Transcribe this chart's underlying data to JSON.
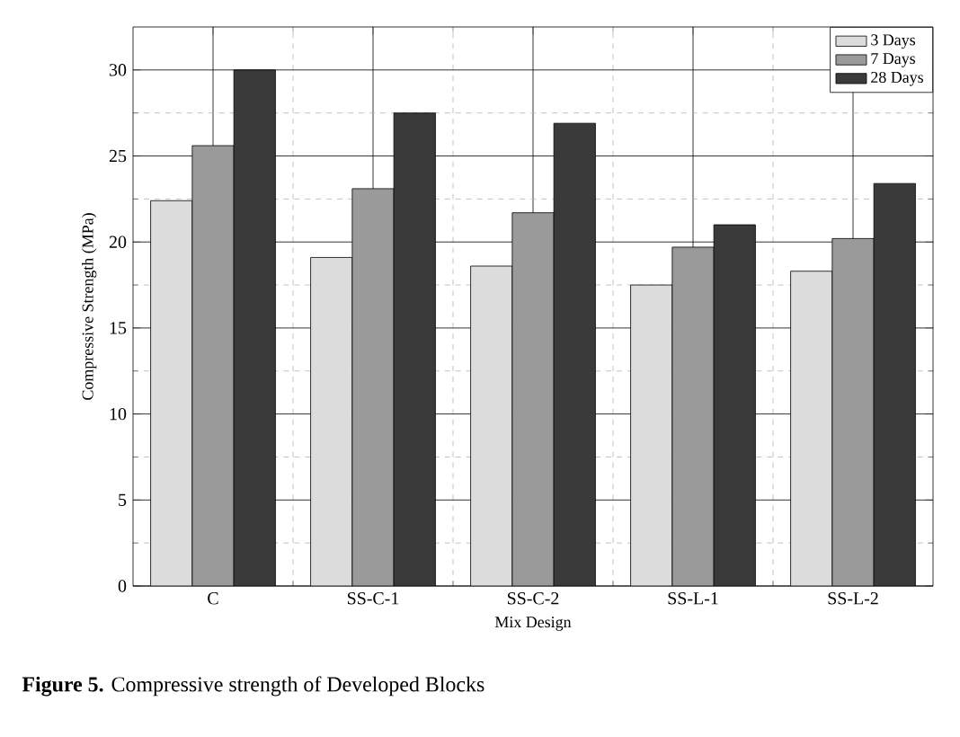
{
  "chart_data": {
    "type": "bar",
    "xlabel": "Mix Design",
    "ylabel": "Compressive Strength (MPa)",
    "categories": [
      "C",
      "SS-C-1",
      "SS-C-2",
      "SS-L-1",
      "SS-L-2"
    ],
    "series": [
      {
        "name": "3 Days",
        "color": "#dcdcdc",
        "values": [
          22.4,
          19.1,
          18.6,
          17.5,
          18.3
        ]
      },
      {
        "name": "7 Days",
        "color": "#9a9a9a",
        "values": [
          25.6,
          23.1,
          21.7,
          19.7,
          20.2
        ]
      },
      {
        "name": "28 Days",
        "color": "#3a3a3a",
        "values": [
          30.0,
          27.5,
          26.9,
          21.0,
          23.4
        ]
      }
    ],
    "ylim": [
      0,
      32.5
    ],
    "yticks": [
      0,
      5,
      10,
      15,
      20,
      25,
      30
    ],
    "grid": true,
    "legend": "top right",
    "annotations": [
      "**Figure 5.** Compressive strength of Developed Blocks"
    ]
  }
}
